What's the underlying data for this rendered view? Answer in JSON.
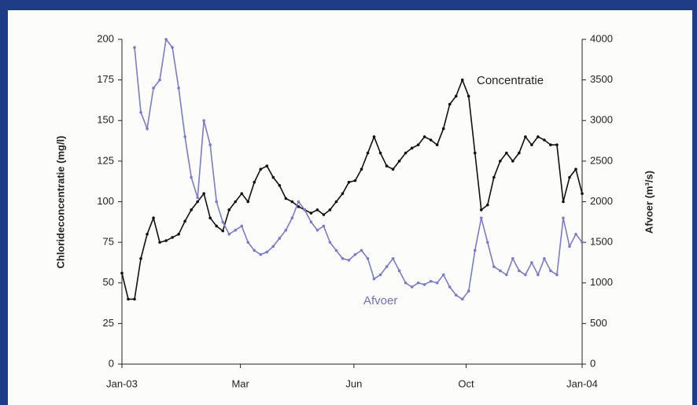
{
  "chart_data": {
    "type": "line",
    "ylabel": "Chlorideconcentratie (mg/l)",
    "y2label": "Afvoer (m³/s)",
    "x": [
      0,
      5,
      10,
      15,
      20,
      25,
      30,
      35,
      40,
      45,
      50,
      55,
      60,
      65,
      70,
      75,
      80,
      85,
      90,
      95,
      100,
      105,
      110,
      115,
      120,
      125,
      130,
      135,
      140,
      145,
      150,
      155,
      160,
      165,
      170,
      175,
      180,
      185,
      190,
      195,
      200,
      205,
      210,
      215,
      220,
      225,
      230,
      235,
      240,
      245,
      250,
      255,
      260,
      265,
      270,
      275,
      280,
      285,
      290,
      295,
      300,
      305,
      310,
      315,
      320,
      325,
      330,
      335,
      340,
      345,
      350,
      355,
      360,
      365
    ],
    "xlim": [
      0,
      365
    ],
    "xticks": [
      {
        "value": 0,
        "label": "Jan-03"
      },
      {
        "value": 94,
        "label": "Mar"
      },
      {
        "value": 184,
        "label": "Jun"
      },
      {
        "value": 273,
        "label": "Oct"
      },
      {
        "value": 365,
        "label": "Jan-04"
      }
    ],
    "ylim": [
      0,
      200
    ],
    "yticks": [
      0,
      25,
      50,
      75,
      100,
      125,
      150,
      175,
      200
    ],
    "y2lim": [
      0,
      4000
    ],
    "y2ticks": [
      0,
      500,
      1000,
      1500,
      2000,
      2500,
      3000,
      3500,
      4000
    ],
    "series": [
      {
        "name": "Concentratie",
        "color": "#111111",
        "values": [
          56,
          40,
          40,
          65,
          80,
          90,
          75,
          76,
          78,
          80,
          88,
          95,
          100,
          105,
          90,
          85,
          82,
          95,
          100,
          105,
          100,
          112,
          120,
          122,
          115,
          110,
          102,
          100,
          97,
          95,
          93,
          95,
          92,
          95,
          100,
          105,
          112,
          113,
          120,
          130,
          140,
          130,
          122,
          120,
          125,
          130,
          133,
          135,
          140,
          138,
          135,
          145,
          160,
          165,
          175,
          165,
          130,
          95,
          98,
          115,
          125,
          130,
          125,
          130,
          140,
          135,
          140,
          138,
          135,
          135,
          100,
          115,
          120,
          105
        ]
      },
      {
        "name": "Afvoer",
        "color": "#7b7bc8",
        "axis": "y2",
        "values": [
          null,
          null,
          3900,
          3100,
          2900,
          3400,
          3500,
          4000,
          3900,
          3400,
          2800,
          2300,
          2050,
          3000,
          2700,
          2000,
          1750,
          1600,
          1650,
          1700,
          1500,
          1400,
          1350,
          1380,
          1450,
          1550,
          1650,
          1800,
          2000,
          1900,
          1750,
          1650,
          1700,
          1500,
          1400,
          1300,
          1280,
          1350,
          1400,
          1300,
          1050,
          1100,
          1200,
          1300,
          1150,
          1000,
          950,
          1000,
          980,
          1020,
          1000,
          1100,
          950,
          850,
          800,
          900,
          1400,
          1800,
          1500,
          1200,
          1150,
          1100,
          1300,
          1150,
          1100,
          1250,
          1100,
          1300,
          1150,
          1100,
          1800,
          1450,
          1600,
          1500
        ]
      }
    ]
  }
}
